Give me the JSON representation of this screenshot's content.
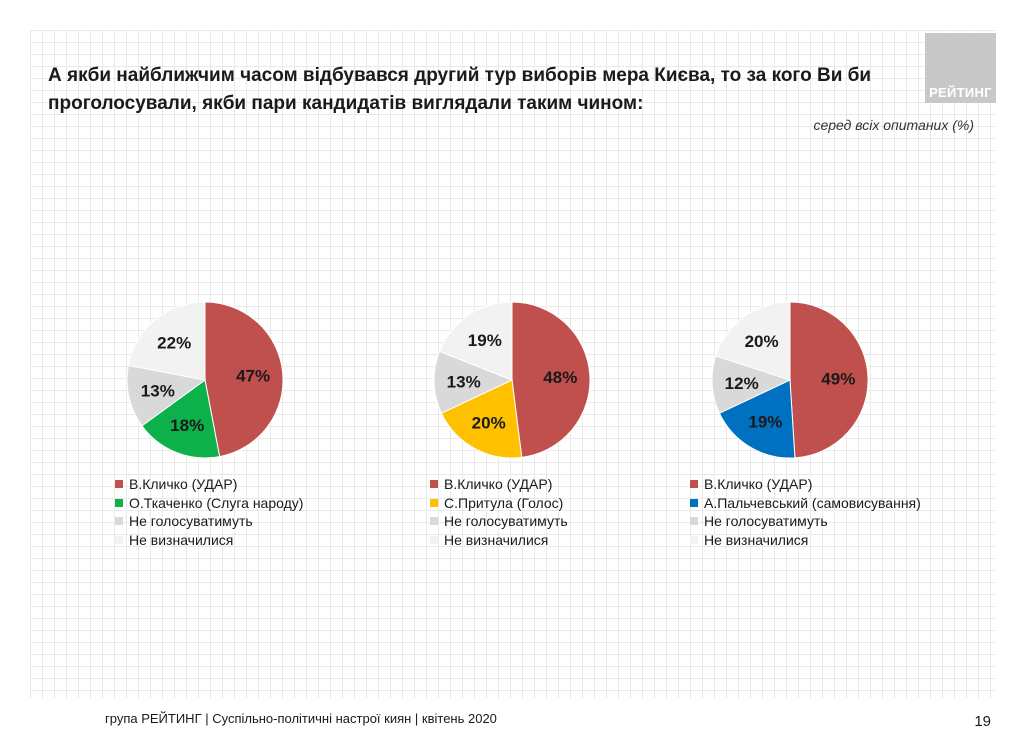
{
  "title": "А якби найближчим часом відбувався другий тур виборів мера Києва, то за кого Ви би проголосували, якби пари кандидатів виглядали таким чином:",
  "subtitle": "серед всіх опитаних (%)",
  "logo_text": "РЕЙТИНГ",
  "footer": "група РЕЙТИНГ | Суспільно-політичні настрої киян | квітень 2020",
  "page_number": "19",
  "chart_data": [
    {
      "type": "pie",
      "categories": [
        "В.Кличко (УДАР)",
        "О.Ткаченко (Слуга народу)",
        "Не голосуватимуть",
        "Не визначилися"
      ],
      "values": [
        47,
        18,
        13,
        22
      ],
      "labels": [
        "47%",
        "18%",
        "13%",
        "22%"
      ],
      "colors": [
        "#c0504d",
        "#0db14b",
        "#d9d9d9",
        "#f2f2f2"
      ]
    },
    {
      "type": "pie",
      "categories": [
        "В.Кличко (УДАР)",
        "С.Притула (Голос)",
        "Не голосуватимуть",
        "Не визначилися"
      ],
      "values": [
        48,
        20,
        13,
        19
      ],
      "labels": [
        "48%",
        "20%",
        "13%",
        "19%"
      ],
      "colors": [
        "#c0504d",
        "#ffc000",
        "#d9d9d9",
        "#f2f2f2"
      ]
    },
    {
      "type": "pie",
      "categories": [
        "В.Кличко (УДАР)",
        "А.Пальчевський (самовисування)",
        "Не голосуватимуть",
        "Не визначилися"
      ],
      "values": [
        49,
        19,
        12,
        20
      ],
      "labels": [
        "49%",
        "19%",
        "12%",
        "20%"
      ],
      "colors": [
        "#c0504d",
        "#0070c0",
        "#d9d9d9",
        "#f2f2f2"
      ]
    }
  ]
}
